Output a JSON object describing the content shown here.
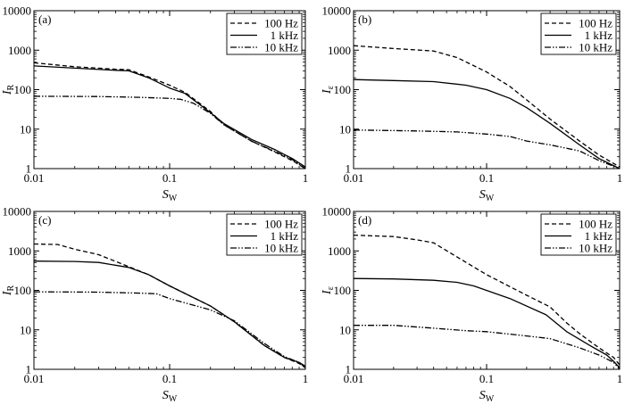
{
  "chart_data": [
    {
      "type": "line",
      "panel": "(a)",
      "xscale": "log",
      "yscale": "log",
      "xlim": [
        0.01,
        1
      ],
      "ylim": [
        1,
        10000
      ],
      "xlabel": "S",
      "xlabel_sub": "W",
      "ylabel": "I",
      "ylabel_sub": "R",
      "legend_position": "top-right",
      "x_ticks": [
        "0.01",
        "0.1",
        "1"
      ],
      "y_ticks": [
        "1",
        "10",
        "100",
        "1000",
        "10000"
      ],
      "series": [
        {
          "name": "100 Hz",
          "style": "dashed",
          "points": [
            [
              0.01,
              480
            ],
            [
              0.02,
              380
            ],
            [
              0.04,
              330
            ],
            [
              0.05,
              320
            ],
            [
              0.07,
              210
            ],
            [
              0.1,
              130
            ],
            [
              0.13,
              85
            ],
            [
              0.2,
              28
            ],
            [
              0.25,
              13
            ],
            [
              0.4,
              5
            ],
            [
              0.6,
              2.6
            ],
            [
              0.8,
              1.6
            ],
            [
              1,
              1
            ]
          ]
        },
        {
          "name": "1 kHz",
          "style": "solid",
          "points": [
            [
              0.01,
              400
            ],
            [
              0.02,
              350
            ],
            [
              0.04,
              310
            ],
            [
              0.05,
              300
            ],
            [
              0.07,
              200
            ],
            [
              0.1,
              110
            ],
            [
              0.13,
              80
            ],
            [
              0.2,
              26
            ],
            [
              0.25,
              14
            ],
            [
              0.4,
              5.5
            ],
            [
              0.6,
              3
            ],
            [
              0.8,
              1.8
            ],
            [
              1,
              1.1
            ]
          ]
        },
        {
          "name": "10 kHz",
          "style": "dash-dot-dot",
          "points": [
            [
              0.01,
              68
            ],
            [
              0.03,
              67
            ],
            [
              0.06,
              64
            ],
            [
              0.1,
              60
            ],
            [
              0.12,
              57
            ],
            [
              0.15,
              45
            ],
            [
              0.2,
              25
            ],
            [
              0.25,
              13
            ],
            [
              0.4,
              5
            ],
            [
              0.6,
              2.7
            ],
            [
              0.8,
              1.7
            ],
            [
              1,
              1
            ]
          ]
        }
      ]
    },
    {
      "type": "line",
      "panel": "(b)",
      "xscale": "log",
      "yscale": "log",
      "xlim": [
        0.01,
        1
      ],
      "ylim": [
        1,
        10000
      ],
      "xlabel": "S",
      "xlabel_sub": "W",
      "ylabel": "I",
      "ylabel_sub": "ε",
      "legend_position": "top-right",
      "x_ticks": [
        "0.01",
        "0.1",
        "1"
      ],
      "y_ticks": [
        "1",
        "10",
        "100",
        "1000",
        "10000"
      ],
      "series": [
        {
          "name": "100 Hz",
          "style": "dashed",
          "points": [
            [
              0.01,
              1300
            ],
            [
              0.02,
              1100
            ],
            [
              0.04,
              950
            ],
            [
              0.06,
              650
            ],
            [
              0.1,
              280
            ],
            [
              0.15,
              120
            ],
            [
              0.2,
              55
            ],
            [
              0.3,
              18
            ],
            [
              0.5,
              5
            ],
            [
              0.7,
              2.2
            ],
            [
              1,
              1.1
            ]
          ]
        },
        {
          "name": "1 kHz",
          "style": "solid",
          "points": [
            [
              0.01,
              180
            ],
            [
              0.02,
              170
            ],
            [
              0.04,
              160
            ],
            [
              0.07,
              130
            ],
            [
              0.1,
              100
            ],
            [
              0.15,
              60
            ],
            [
              0.2,
              35
            ],
            [
              0.3,
              14
            ],
            [
              0.5,
              4
            ],
            [
              0.7,
              1.8
            ],
            [
              1,
              1
            ]
          ]
        },
        {
          "name": "10 kHz",
          "style": "dash-dot-dot",
          "points": [
            [
              0.01,
              9.5
            ],
            [
              0.03,
              9
            ],
            [
              0.06,
              8.5
            ],
            [
              0.1,
              7.5
            ],
            [
              0.15,
              6.5
            ],
            [
              0.2,
              5
            ],
            [
              0.3,
              4
            ],
            [
              0.5,
              2.8
            ],
            [
              0.7,
              1.6
            ],
            [
              1,
              1
            ]
          ]
        }
      ]
    },
    {
      "type": "line",
      "panel": "(c)",
      "xscale": "log",
      "yscale": "log",
      "xlim": [
        0.01,
        1
      ],
      "ylim": [
        1,
        10000
      ],
      "xlabel": "S",
      "xlabel_sub": "W",
      "ylabel": "I",
      "ylabel_sub": "R",
      "legend_position": "top-right",
      "x_ticks": [
        "0.01",
        "0.1",
        "1"
      ],
      "y_ticks": [
        "1",
        "10",
        "100",
        "1000",
        "10000"
      ],
      "series": [
        {
          "name": "100 Hz",
          "style": "dashed",
          "points": [
            [
              0.01,
              1500
            ],
            [
              0.015,
              1450
            ],
            [
              0.02,
              1100
            ],
            [
              0.03,
              800
            ],
            [
              0.05,
              400
            ],
            [
              0.07,
              250
            ],
            [
              0.1,
              130
            ],
            [
              0.2,
              40
            ],
            [
              0.3,
              16
            ],
            [
              0.5,
              4
            ],
            [
              0.7,
              2
            ],
            [
              0.9,
              1.4
            ],
            [
              1,
              1.1
            ]
          ]
        },
        {
          "name": "1 kHz",
          "style": "solid",
          "points": [
            [
              0.01,
              550
            ],
            [
              0.02,
              540
            ],
            [
              0.03,
              510
            ],
            [
              0.05,
              380
            ],
            [
              0.07,
              250
            ],
            [
              0.1,
              130
            ],
            [
              0.2,
              40
            ],
            [
              0.3,
              16
            ],
            [
              0.5,
              4
            ],
            [
              0.7,
              2
            ],
            [
              0.9,
              1.5
            ],
            [
              1,
              1.2
            ]
          ]
        },
        {
          "name": "10 kHz",
          "style": "dash-dot-dot",
          "points": [
            [
              0.01,
              92
            ],
            [
              0.03,
              90
            ],
            [
              0.06,
              85
            ],
            [
              0.08,
              82
            ],
            [
              0.1,
              62
            ],
            [
              0.2,
              32
            ],
            [
              0.3,
              17
            ],
            [
              0.5,
              4.5
            ],
            [
              0.7,
              2.1
            ],
            [
              0.9,
              1.5
            ],
            [
              1,
              1.1
            ]
          ]
        }
      ]
    },
    {
      "type": "line",
      "panel": "(d)",
      "xscale": "log",
      "yscale": "log",
      "xlim": [
        0.01,
        1
      ],
      "ylim": [
        1,
        10000
      ],
      "xlabel": "S",
      "xlabel_sub": "W",
      "ylabel": "I",
      "ylabel_sub": "ε",
      "legend_position": "top-right",
      "x_ticks": [
        "0.01",
        "0.1",
        "1"
      ],
      "y_ticks": [
        "1",
        "10",
        "100",
        "1000",
        "10000"
      ],
      "series": [
        {
          "name": "100 Hz",
          "style": "dashed",
          "points": [
            [
              0.01,
              2500
            ],
            [
              0.02,
              2300
            ],
            [
              0.03,
              1900
            ],
            [
              0.04,
              1600
            ],
            [
              0.06,
              700
            ],
            [
              0.1,
              250
            ],
            [
              0.2,
              75
            ],
            [
              0.3,
              38
            ],
            [
              0.4,
              15
            ],
            [
              0.5,
              8
            ],
            [
              0.7,
              3.5
            ],
            [
              0.9,
              2
            ],
            [
              1,
              1.3
            ]
          ]
        },
        {
          "name": "1 kHz",
          "style": "solid",
          "points": [
            [
              0.01,
              200
            ],
            [
              0.02,
              195
            ],
            [
              0.04,
              180
            ],
            [
              0.06,
              160
            ],
            [
              0.08,
              130
            ],
            [
              0.15,
              62
            ],
            [
              0.28,
              24
            ],
            [
              0.4,
              9
            ],
            [
              0.6,
              4
            ],
            [
              0.8,
              2.3
            ],
            [
              0.9,
              1.6
            ],
            [
              1,
              1.1
            ]
          ]
        },
        {
          "name": "10 kHz",
          "style": "dash-dot-dot",
          "points": [
            [
              0.01,
              13
            ],
            [
              0.02,
              13
            ],
            [
              0.04,
              11
            ],
            [
              0.07,
              9.5
            ],
            [
              0.1,
              9
            ],
            [
              0.2,
              7
            ],
            [
              0.3,
              6
            ],
            [
              0.5,
              3.5
            ],
            [
              0.7,
              2.3
            ],
            [
              0.9,
              1.5
            ],
            [
              1,
              1
            ]
          ]
        }
      ]
    }
  ]
}
